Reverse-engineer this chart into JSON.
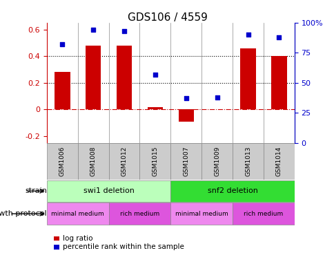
{
  "title": "GDS106 / 4559",
  "samples": [
    "GSM1006",
    "GSM1008",
    "GSM1012",
    "GSM1015",
    "GSM1007",
    "GSM1009",
    "GSM1013",
    "GSM1014"
  ],
  "log_ratio": [
    0.28,
    0.48,
    0.48,
    0.02,
    -0.09,
    0.0,
    0.46,
    0.4
  ],
  "percentile_pct": [
    82,
    94,
    93,
    57,
    37,
    38,
    90,
    88
  ],
  "bar_color": "#cc0000",
  "dot_color": "#0000cc",
  "ylim_left": [
    -0.25,
    0.65
  ],
  "ylim_right": [
    0,
    100
  ],
  "yticks_left": [
    -0.2,
    0.0,
    0.2,
    0.4,
    0.6
  ],
  "ytick_labels_left": [
    "-0.2",
    "0",
    "0.2",
    "0.4",
    "0.6"
  ],
  "yticks_right": [
    0,
    25,
    50,
    75,
    100
  ],
  "ytick_labels_right": [
    "0",
    "25",
    "50",
    "75",
    "100%"
  ],
  "hlines": [
    0.2,
    0.4
  ],
  "zero_line_color": "#cc0000",
  "strain_labels": [
    {
      "text": "swi1 deletion",
      "span": [
        0,
        4
      ],
      "color": "#bbffbb"
    },
    {
      "text": "snf2 deletion",
      "span": [
        4,
        8
      ],
      "color": "#33dd33"
    }
  ],
  "protocol_labels": [
    {
      "text": "minimal medium",
      "span": [
        0,
        2
      ],
      "color": "#ee88ee"
    },
    {
      "text": "rich medium",
      "span": [
        2,
        4
      ],
      "color": "#dd55dd"
    },
    {
      "text": "minimal medium",
      "span": [
        4,
        6
      ],
      "color": "#ee88ee"
    },
    {
      "text": "rich medium",
      "span": [
        6,
        8
      ],
      "color": "#dd55dd"
    }
  ],
  "strain_row_label": "strain",
  "protocol_row_label": "growth protocol",
  "legend_items": [
    {
      "label": "log ratio",
      "color": "#cc0000"
    },
    {
      "label": "percentile rank within the sample",
      "color": "#0000cc"
    }
  ],
  "bg_color": "white",
  "spine_color": "#888888",
  "sample_bg_color": "#cccccc"
}
